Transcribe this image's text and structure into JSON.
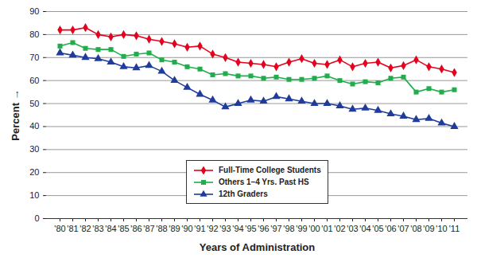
{
  "chart_data": {
    "type": "line",
    "x_label": "Years of Administration",
    "y_label": "Percent",
    "categories": [
      "'80",
      "'81",
      "'82",
      "'83",
      "'84",
      "'85",
      "'86",
      "'87",
      "'88",
      "'89",
      "'90",
      "'91",
      "'92",
      "'93",
      "'94",
      "'95",
      "'96",
      "'97",
      "'98",
      "'99",
      "'00",
      "'01",
      "'02",
      "'03",
      "'04",
      "'05",
      "'06",
      "'07",
      "'08",
      "'09",
      "'10",
      "'11"
    ],
    "series": [
      {
        "name": "Full-Time College Students",
        "color": "#e5001c",
        "marker": "diamond",
        "line_style": "solid",
        "values": [
          82,
          82,
          83,
          80,
          79,
          80,
          79.5,
          78,
          77,
          76,
          74.5,
          75,
          71.5,
          70,
          68,
          67.5,
          67,
          66,
          68,
          69.5,
          67.5,
          67,
          69,
          66,
          67.5,
          68,
          65.5,
          66.5,
          69,
          66,
          65,
          63.5
        ]
      },
      {
        "name": "Others 1–4 Yrs. Past HS",
        "color": "#1fae4a",
        "marker": "square",
        "line_style": "solid",
        "values": [
          75,
          76.5,
          74,
          73.5,
          73.5,
          70.5,
          71.5,
          72,
          69,
          68,
          66,
          65,
          62.5,
          63,
          62,
          62,
          61,
          61.5,
          60.5,
          60.5,
          61,
          62,
          60,
          58.5,
          59.5,
          59,
          61,
          61.5,
          55,
          56.5,
          55,
          56
        ]
      },
      {
        "name": "12th Graders",
        "color": "#1f3c9c",
        "marker": "triangle",
        "line_style": "solid",
        "values": [
          72,
          71,
          70,
          69.5,
          68,
          66,
          65.5,
          66.5,
          64,
          60,
          57,
          54,
          51.5,
          48.5,
          50,
          51.5,
          51,
          53,
          52,
          51,
          50,
          50,
          49,
          47.5,
          48,
          47,
          45.5,
          44.5,
          43,
          43.5,
          41.5,
          40
        ]
      }
    ],
    "ylim": [
      0,
      90
    ],
    "yticks": [
      0,
      10,
      20,
      30,
      40,
      50,
      60,
      70,
      80,
      90
    ],
    "grid": true,
    "legend": "lower center"
  }
}
